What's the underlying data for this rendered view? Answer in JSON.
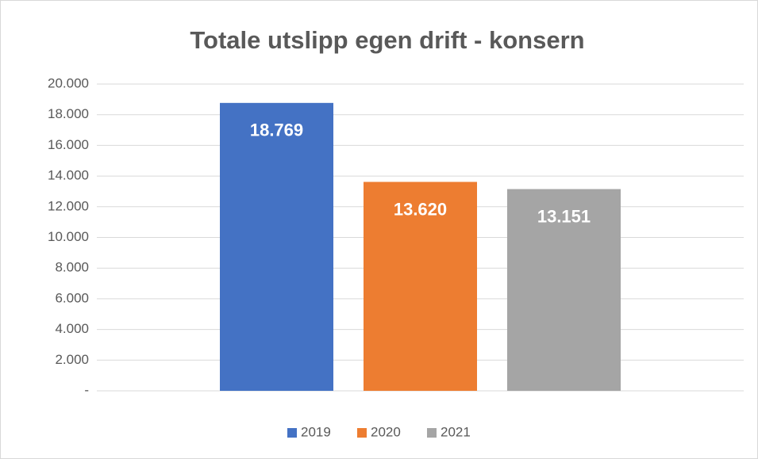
{
  "chart_data": {
    "type": "bar",
    "title": "Totale utslipp egen drift - konsern",
    "categories": [
      null
    ],
    "series": [
      {
        "name": "2019",
        "color": "#4472c4",
        "values": [
          18769
        ],
        "value_labels": [
          "18.769"
        ]
      },
      {
        "name": "2020",
        "color": "#ed7d31",
        "values": [
          13620
        ],
        "value_labels": [
          "13.620"
        ]
      },
      {
        "name": "2021",
        "color": "#a5a5a5",
        "values": [
          13151
        ],
        "value_labels": [
          "13.151"
        ]
      }
    ],
    "ylim": [
      0,
      20000
    ],
    "yticks": [
      {
        "value": 0,
        "label": "-"
      },
      {
        "value": 2000,
        "label": "2.000"
      },
      {
        "value": 4000,
        "label": "4.000"
      },
      {
        "value": 6000,
        "label": "6.000"
      },
      {
        "value": 8000,
        "label": "8.000"
      },
      {
        "value": 10000,
        "label": "10.000"
      },
      {
        "value": 12000,
        "label": "12.000"
      },
      {
        "value": 14000,
        "label": "14.000"
      },
      {
        "value": 16000,
        "label": "16.000"
      },
      {
        "value": 18000,
        "label": "18.000"
      },
      {
        "value": 20000,
        "label": "20.000"
      }
    ],
    "grid": true,
    "legend": "bottom"
  }
}
